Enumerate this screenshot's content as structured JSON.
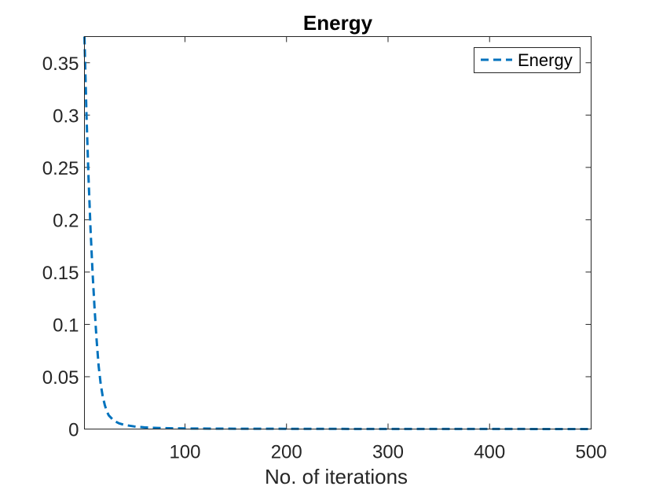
{
  "chart_data": {
    "type": "line",
    "title": "Energy",
    "xlabel": "No. of iterations",
    "ylabel": "",
    "xlim": [
      1,
      500
    ],
    "ylim": [
      0,
      0.375
    ],
    "xticks": [
      100,
      200,
      300,
      400,
      500
    ],
    "xtick_labels": [
      "100",
      "200",
      "300",
      "400",
      "500"
    ],
    "yticks": [
      0,
      0.05,
      0.1,
      0.15,
      0.2,
      0.25,
      0.3,
      0.35
    ],
    "ytick_labels": [
      "0",
      "0.05",
      "0.1",
      "0.15",
      "0.2",
      "0.25",
      "0.3",
      "0.35"
    ],
    "grid": false,
    "legend_position": "top-right",
    "series": [
      {
        "name": "Energy",
        "color": "#0072BD",
        "line_style": "dashed",
        "x": [
          1,
          3,
          5,
          7,
          9,
          11,
          13,
          15,
          17,
          19,
          21,
          23,
          25,
          30,
          35,
          40,
          50,
          60,
          70,
          80,
          100,
          150,
          200,
          300,
          400,
          500
        ],
        "y": [
          0.375,
          0.3,
          0.24,
          0.19,
          0.15,
          0.115,
          0.085,
          0.06,
          0.043,
          0.031,
          0.023,
          0.017,
          0.013,
          0.008,
          0.0055,
          0.004,
          0.0025,
          0.0016,
          0.0011,
          0.0008,
          0.0005,
          0.0003,
          0.0002,
          0.0001,
          5e-05,
          3e-05
        ]
      }
    ]
  }
}
